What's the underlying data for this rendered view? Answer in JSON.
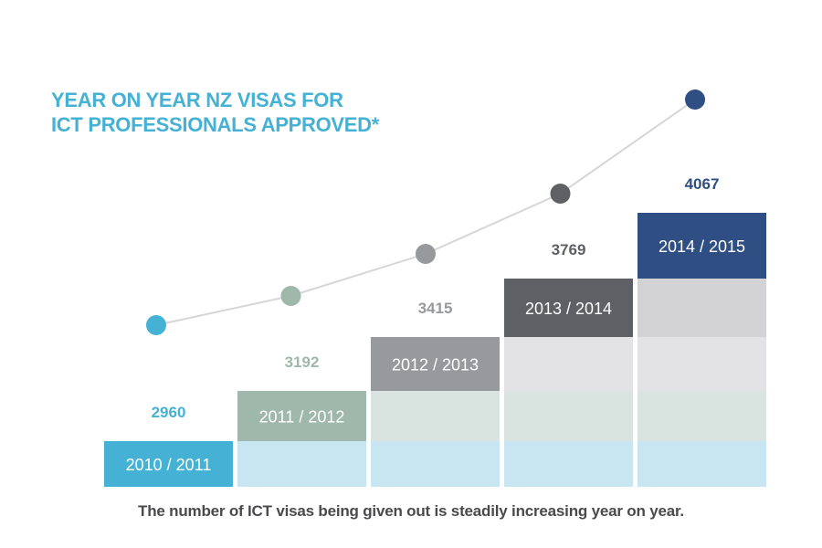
{
  "chart_data": {
    "type": "bar",
    "title_lines": [
      "YEAR ON YEAR NZ VISAS FOR",
      "ICT PROFESSIONALS APPROVED*"
    ],
    "caption": "The number of ICT visas being given out is steadily increasing year on year.",
    "categories": [
      "2010 / 2011",
      "2011 / 2012",
      "2012 / 2013",
      "2013 / 2014",
      "2014 / 2015"
    ],
    "values": [
      2960,
      3192,
      3415,
      3769,
      4067
    ],
    "value_labels": [
      "2960",
      "3192",
      "3415",
      "3769",
      "4067"
    ],
    "overlay": "line with markers",
    "xlabel": "",
    "ylabel": "",
    "grid": false,
    "colors": {
      "title": "#45b1d4",
      "caption": "#4a4a4c",
      "line": "#d6d6d8",
      "series": [
        "#45b1d4",
        "#9fb8ab",
        "#98999d",
        "#5f6066",
        "#2f4f84"
      ],
      "ghost_tiers": [
        "#c7e6f1",
        "#d9e3df",
        "#e3e3e5",
        "#d3d3d5"
      ]
    }
  }
}
